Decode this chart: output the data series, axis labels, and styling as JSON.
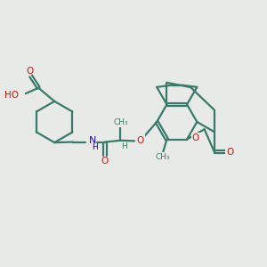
{
  "background_color": "#e8eae8",
  "bond_color": "#3a7a6a",
  "bond_width": 1.6,
  "o_color": "#dd1100",
  "n_color": "#2200bb",
  "figsize": [
    3.0,
    3.0
  ],
  "dpi": 100,
  "xlim": [
    0,
    10
  ],
  "ylim": [
    0,
    10
  ]
}
